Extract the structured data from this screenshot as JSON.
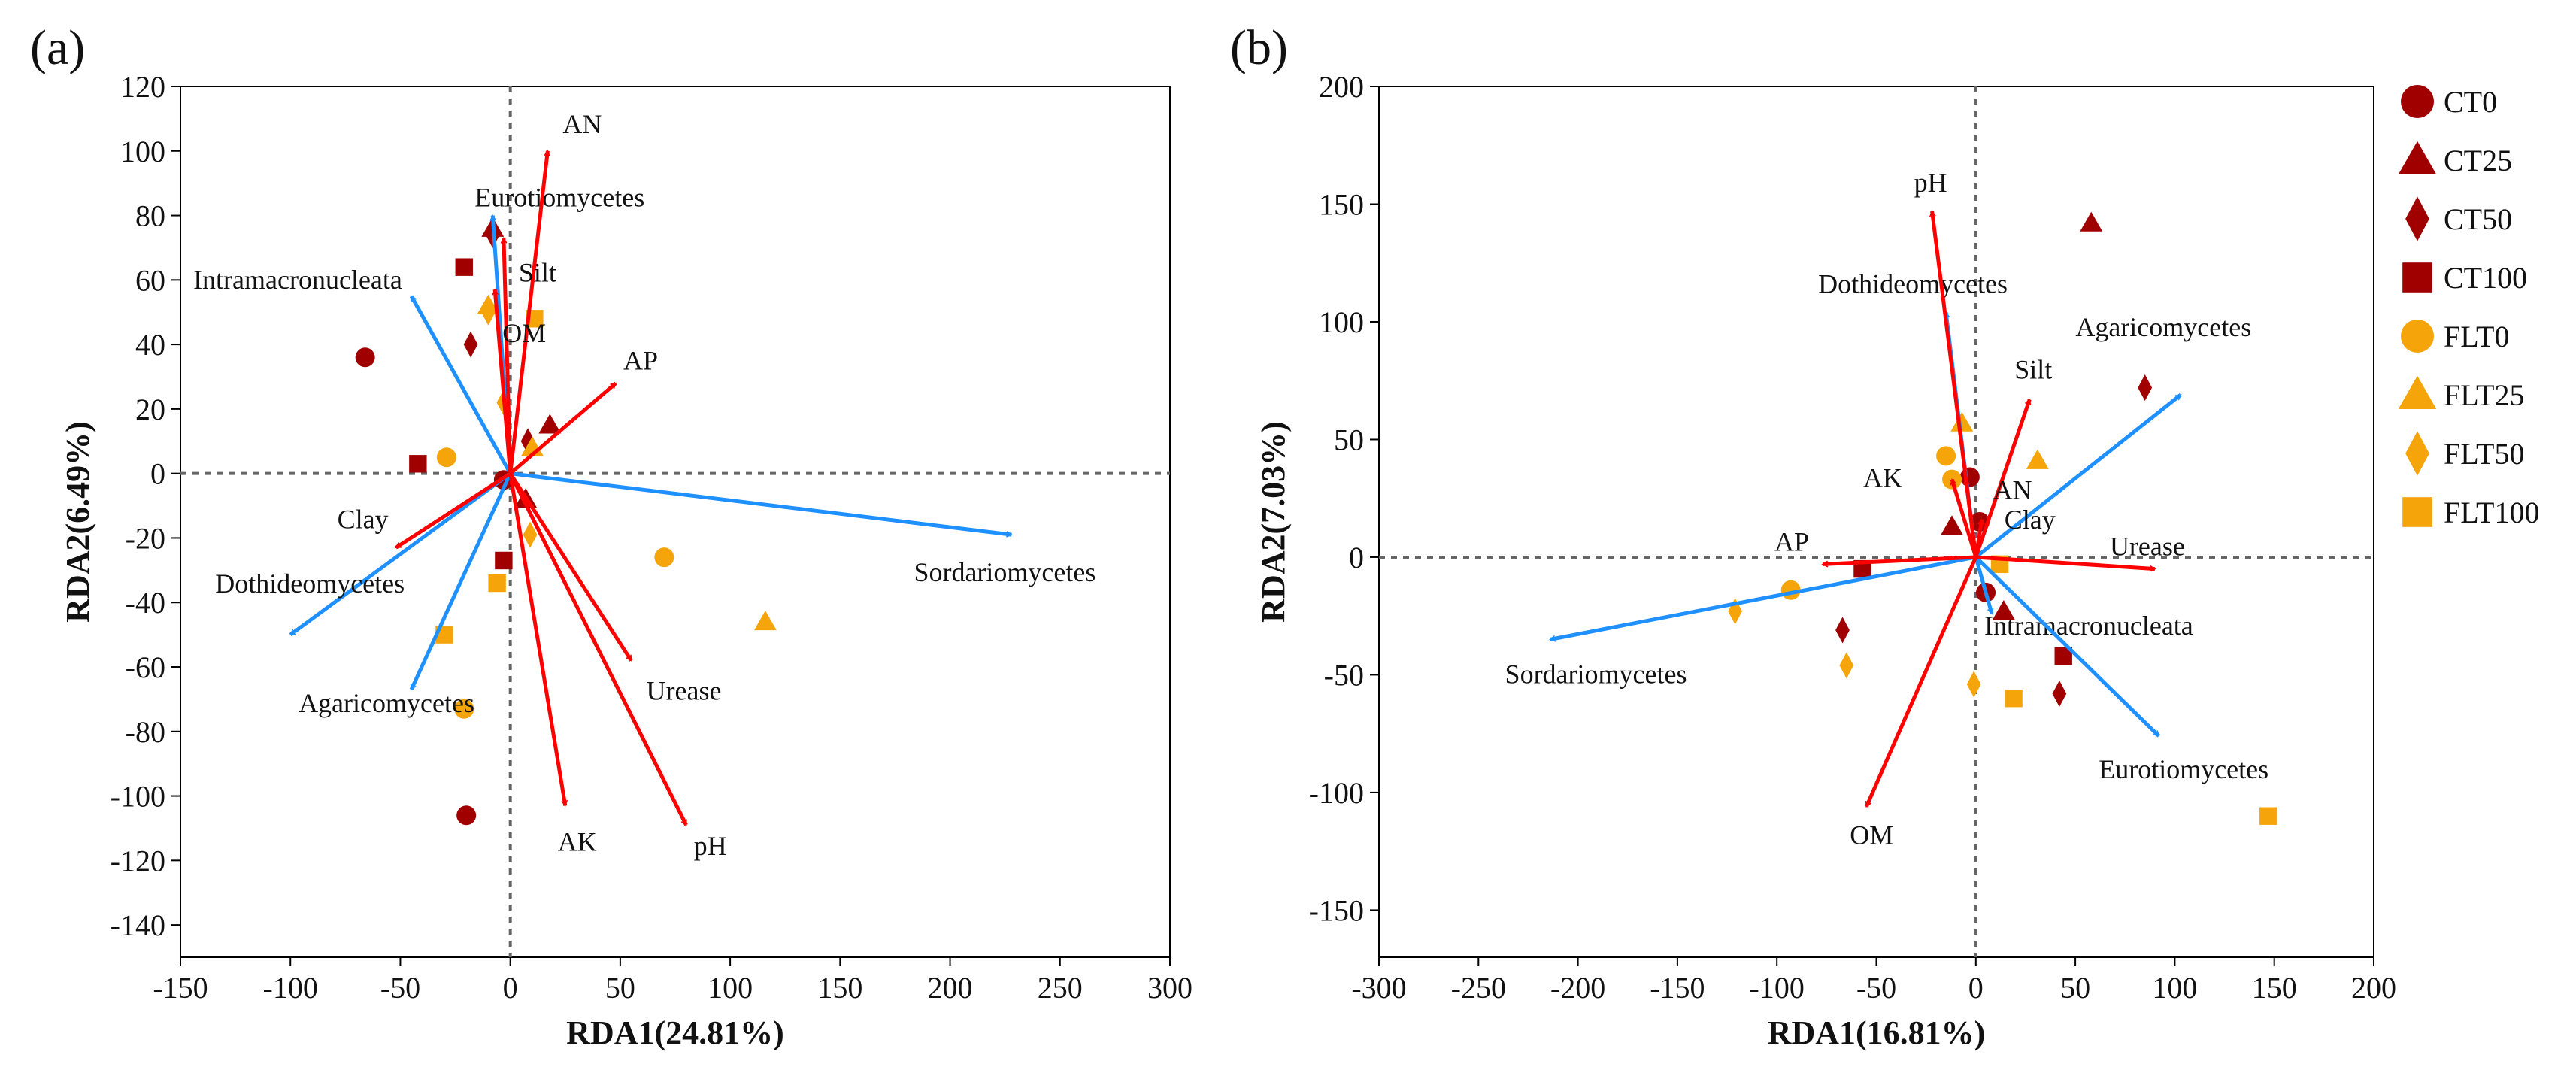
{
  "colors": {
    "ct": "#a00000",
    "flt": "#f5a50a",
    "env": "#ff0000",
    "species": "#1e90ff"
  },
  "legend": [
    {
      "label": "CT0",
      "shape": "circle",
      "color": "#a00000"
    },
    {
      "label": "CT25",
      "shape": "triangle",
      "color": "#a00000"
    },
    {
      "label": "CT50",
      "shape": "diamond",
      "color": "#a00000"
    },
    {
      "label": "CT100",
      "shape": "square",
      "color": "#a00000"
    },
    {
      "label": "FLT0",
      "shape": "circle",
      "color": "#f5a50a"
    },
    {
      "label": "FLT25",
      "shape": "triangle",
      "color": "#f5a50a"
    },
    {
      "label": "FLT50",
      "shape": "diamond",
      "color": "#f5a50a"
    },
    {
      "label": "FLT100",
      "shape": "square",
      "color": "#f5a50a"
    }
  ],
  "chart_data": [
    {
      "type": "scatter",
      "panel_label": "(a)",
      "xlabel": "RDA1(24.81%)",
      "ylabel": "RDA2(6.49%)",
      "xlim": [
        -150,
        300
      ],
      "ylim": [
        -150,
        120
      ],
      "xticks": [
        -150,
        -100,
        -50,
        0,
        50,
        100,
        150,
        200,
        250,
        300
      ],
      "yticks": [
        -140,
        -120,
        -100,
        -80,
        -60,
        -40,
        -20,
        0,
        20,
        40,
        60,
        80,
        100,
        120
      ],
      "grid": false,
      "env_vectors": [
        {
          "name": "AN",
          "x": 17,
          "y": 100
        },
        {
          "name": "Silt",
          "x": -3,
          "y": 73
        },
        {
          "name": "OM",
          "x": -7,
          "y": 57
        },
        {
          "name": "AP",
          "x": 48,
          "y": 28
        },
        {
          "name": "Clay",
          "x": -52,
          "y": -23
        },
        {
          "name": "Urease",
          "x": 55,
          "y": -58
        },
        {
          "name": "AK",
          "x": 25,
          "y": -103
        },
        {
          "name": "pH",
          "x": 80,
          "y": -109
        }
      ],
      "species_vectors": [
        {
          "name": "Eurotiomycetes",
          "x": -8,
          "y": 80
        },
        {
          "name": "Intramacronucleata",
          "x": -45,
          "y": 55
        },
        {
          "name": "Sordariomycetes",
          "x": 228,
          "y": -19
        },
        {
          "name": "Dothideomycetes",
          "x": -100,
          "y": -50
        },
        {
          "name": "Agaricomycetes",
          "x": -45,
          "y": -67
        }
      ],
      "samples": [
        {
          "group": "CT0",
          "points": [
            [
              -66,
              36
            ],
            [
              -3,
              -2
            ],
            [
              -20,
              -106
            ]
          ]
        },
        {
          "group": "CT25",
          "points": [
            [
              -8,
              76
            ],
            [
              18,
              15
            ],
            [
              7,
              -8
            ]
          ]
        },
        {
          "group": "CT50",
          "points": [
            [
              -8,
              74
            ],
            [
              -18,
              40
            ],
            [
              8,
              10
            ]
          ]
        },
        {
          "group": "CT100",
          "points": [
            [
              -21,
              64
            ],
            [
              -42,
              3
            ],
            [
              -3,
              -27
            ]
          ]
        },
        {
          "group": "FLT0",
          "points": [
            [
              -29,
              5
            ],
            [
              70,
              -26
            ],
            [
              -21,
              -73
            ]
          ]
        },
        {
          "group": "FLT25",
          "points": [
            [
              -10,
              52
            ],
            [
              10,
              8
            ],
            [
              116,
              -46
            ]
          ]
        },
        {
          "group": "FLT50",
          "points": [
            [
              -3,
              22
            ],
            [
              -10,
              50
            ],
            [
              9,
              -19
            ]
          ]
        },
        {
          "group": "FLT100",
          "points": [
            [
              11,
              48
            ],
            [
              -6,
              -34
            ],
            [
              -30,
              -50
            ]
          ]
        }
      ]
    },
    {
      "type": "scatter",
      "panel_label": "(b)",
      "xlabel": "RDA1(16.81%)",
      "ylabel": "RDA2(7.03%)",
      "xlim": [
        -300,
        200
      ],
      "ylim": [
        -170,
        200
      ],
      "xticks": [
        -300,
        -250,
        -200,
        -150,
        -100,
        -50,
        0,
        50,
        100,
        150,
        200
      ],
      "yticks": [
        -150,
        -100,
        -50,
        0,
        50,
        100,
        150,
        200
      ],
      "grid": false,
      "env_vectors": [
        {
          "name": "pH",
          "x": -22,
          "y": 147
        },
        {
          "name": "Silt",
          "x": 27,
          "y": 67
        },
        {
          "name": "AN",
          "x": -5,
          "y": 33
        },
        {
          "name": "Clay",
          "x": 3,
          "y": 16
        },
        {
          "name": "AP",
          "x": -77,
          "y": -3
        },
        {
          "name": "Urease",
          "x": 90,
          "y": -5
        },
        {
          "name": "OM",
          "x": -55,
          "y": -106
        },
        {
          "name": "AK",
          "x": -12,
          "y": 33
        }
      ],
      "species_vectors": [
        {
          "name": "Dothideomycetes",
          "x": -15,
          "y": 104
        },
        {
          "name": "Agaricomycetes",
          "x": 103,
          "y": 69
        },
        {
          "name": "Sordariomycetes",
          "x": -214,
          "y": -35
        },
        {
          "name": "Intramacronucleata",
          "x": 8,
          "y": -24
        },
        {
          "name": "Eurotiomycetes",
          "x": 92,
          "y": -76
        }
      ],
      "samples": [
        {
          "group": "CT0",
          "points": [
            [
              -3,
              34
            ],
            [
              2,
              15
            ],
            [
              5,
              -15
            ]
          ]
        },
        {
          "group": "CT25",
          "points": [
            [
              58,
              142
            ],
            [
              -12,
              13
            ],
            [
              14,
              -23
            ]
          ]
        },
        {
          "group": "CT50",
          "points": [
            [
              85,
              72
            ],
            [
              -67,
              -31
            ],
            [
              42,
              -58
            ]
          ]
        },
        {
          "group": "CT100",
          "points": [
            [
              -57,
              -5
            ],
            [
              44,
              -42
            ]
          ]
        },
        {
          "group": "FLT0",
          "points": [
            [
              -15,
              43
            ],
            [
              -12,
              33
            ],
            [
              -93,
              -14
            ]
          ]
        },
        {
          "group": "FLT25",
          "points": [
            [
              -7,
              57
            ],
            [
              31,
              41
            ]
          ]
        },
        {
          "group": "FLT50",
          "points": [
            [
              -121,
              -23
            ],
            [
              -65,
              -46
            ],
            [
              -1,
              -54
            ]
          ]
        },
        {
          "group": "FLT100",
          "points": [
            [
              12,
              -3
            ],
            [
              19,
              -60
            ],
            [
              147,
              -110
            ]
          ]
        }
      ]
    }
  ]
}
